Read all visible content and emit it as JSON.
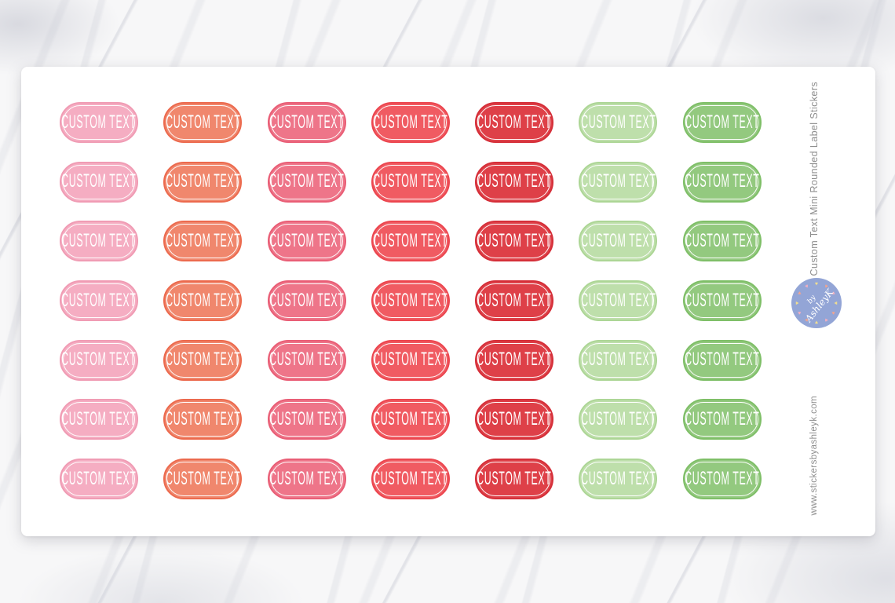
{
  "product": {
    "side_title": "Custom Text Mini Rounded Label Stickers",
    "website": "www.stickersbyashleyk.com"
  },
  "badge": {
    "line1": "by",
    "line2": "AshleyK",
    "bg_color": "#93A5D6",
    "text_color": "#FFFFFF",
    "heart_colors": [
      "#F2DE8F",
      "#F2A48F",
      "#F4AFC0"
    ]
  },
  "sheet": {
    "bg_color": "#FFFFFF",
    "rows": 7,
    "sticker_label": "CUSTOM TEXT",
    "columns": [
      {
        "name": "light-pink",
        "fill": "#F5ADC2",
        "border": "#F09CB4"
      },
      {
        "name": "salmon",
        "fill": "#F0876D",
        "border": "#EC6A4E"
      },
      {
        "name": "rose-pink",
        "fill": "#EE7589",
        "border": "#E95E76"
      },
      {
        "name": "coral-red",
        "fill": "#F05B62",
        "border": "#EC464F"
      },
      {
        "name": "red",
        "fill": "#DE4048",
        "border": "#D52F39"
      },
      {
        "name": "light-green",
        "fill": "#BEDFAB",
        "border": "#ADD696"
      },
      {
        "name": "green",
        "fill": "#93C97F",
        "border": "#7FBF68"
      }
    ]
  },
  "colors": {
    "background_marble": "#F7F7F8",
    "side_text": "#8F8F8F"
  }
}
